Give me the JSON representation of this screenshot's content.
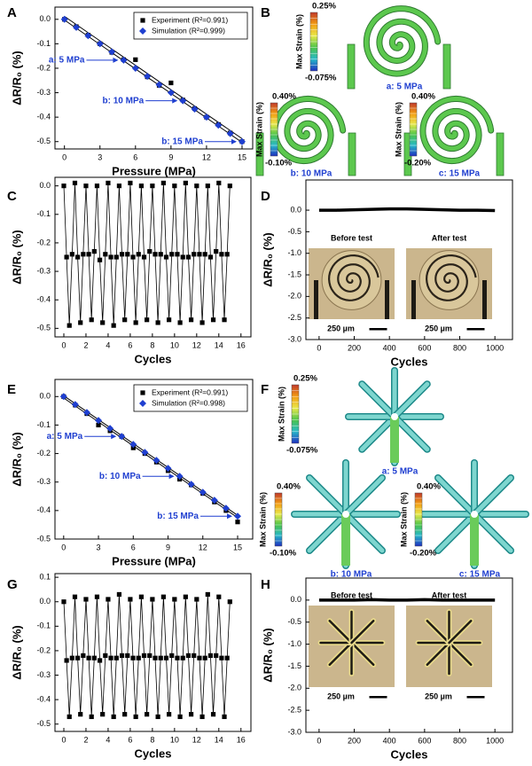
{
  "chart_data": [
    {
      "type": "scatter",
      "panel": "A",
      "xlabel": "Pressure (MPa)",
      "ylabel": "ΔR/R₀ (%)",
      "xlim": [
        -0.8,
        15.9
      ],
      "ylim": [
        -0.53,
        0.05
      ],
      "xticks": [
        0,
        3,
        6,
        9,
        12,
        15
      ],
      "yticks": [
        {
          "value": 0,
          "label": "0.0"
        },
        -0.1,
        -0.2,
        -0.3,
        -0.4,
        -0.5
      ],
      "legend": "upper right",
      "series": [
        {
          "name": "Experiment (R²=0.991)",
          "color": "#000000",
          "marker": "square",
          "x": [
            0,
            1,
            2,
            3,
            4,
            5,
            6,
            7,
            8,
            9,
            10,
            11,
            12,
            13,
            14,
            15
          ],
          "values": [
            0.0,
            -0.03,
            -0.065,
            -0.1,
            -0.135,
            -0.165,
            -0.165,
            -0.235,
            -0.27,
            -0.26,
            -0.33,
            -0.365,
            -0.4,
            -0.43,
            -0.465,
            -0.5
          ]
        },
        {
          "name": "Simulation (R²=0.999)",
          "color": "#1f3fd0",
          "marker": "diamond",
          "x": [
            0,
            1,
            2,
            3,
            4,
            5,
            6,
            7,
            8,
            9,
            10,
            11,
            12,
            13,
            14,
            15
          ],
          "values": [
            0,
            -0.033,
            -0.067,
            -0.1,
            -0.133,
            -0.167,
            -0.2,
            -0.233,
            -0.267,
            -0.3,
            -0.333,
            -0.367,
            -0.4,
            -0.433,
            -0.467,
            -0.5
          ]
        },
        {
          "color": "#000000",
          "x": [
            0,
            15
          ],
          "values": [
            0.012,
            -0.488
          ]
        },
        {
          "color": "#000000",
          "x": [
            0,
            15
          ],
          "values": [
            -0.003,
            -0.503
          ]
        }
      ],
      "annotations": [
        {
          "text": "a: 5 MPa",
          "x": 5,
          "y": -0.167
        },
        {
          "text": "b: 10 MPa",
          "x": 10,
          "y": -0.333
        },
        {
          "text": "b: 15 MPa",
          "x": 15,
          "y": -0.5
        }
      ]
    },
    {
      "type": "line",
      "panel": "C",
      "xlabel": "Cycles",
      "ylabel": "ΔR/R₀ (%)",
      "xlim": [
        -0.8,
        16.9
      ],
      "ylim": [
        -0.53,
        0.03
      ],
      "xticks": [
        0,
        2,
        4,
        6,
        8,
        10,
        12,
        14,
        16
      ],
      "yticks": [
        {
          "value": 0,
          "label": "0.0"
        },
        -0.1,
        -0.2,
        -0.3,
        -0.4,
        -0.5
      ],
      "series": [
        {
          "color": "#000000",
          "marker": "square",
          "x": [
            0,
            0.25,
            0.5,
            0.75,
            1,
            1.25,
            1.5,
            1.75,
            2,
            2.25,
            2.5,
            2.75,
            3,
            3.25,
            3.5,
            3.75,
            4,
            4.25,
            4.5,
            4.75,
            5,
            5.25,
            5.5,
            5.75,
            6,
            6.25,
            6.5,
            6.75,
            7,
            7.25,
            7.5,
            7.75,
            8,
            8.25,
            8.5,
            8.75,
            9,
            9.25,
            9.5,
            9.75,
            10,
            10.25,
            10.5,
            10.75,
            11,
            11.25,
            11.5,
            11.75,
            12,
            12.25,
            12.5,
            12.75,
            13,
            13.25,
            13.5,
            13.75,
            14,
            14.25,
            14.5,
            14.75,
            15
          ],
          "values": [
            0.0,
            -0.25,
            -0.49,
            -0.24,
            0.01,
            -0.25,
            -0.48,
            -0.24,
            0.0,
            -0.24,
            -0.47,
            -0.23,
            0.0,
            -0.26,
            -0.48,
            -0.24,
            0.01,
            -0.25,
            -0.49,
            -0.25,
            0.0,
            -0.24,
            -0.47,
            -0.24,
            0.01,
            -0.25,
            -0.48,
            -0.24,
            0.0,
            -0.25,
            -0.47,
            -0.23,
            0.0,
            -0.24,
            -0.48,
            -0.24,
            0.01,
            -0.25,
            -0.47,
            -0.24,
            0.0,
            -0.24,
            -0.48,
            -0.25,
            0.01,
            -0.25,
            -0.47,
            -0.24,
            0.0,
            -0.24,
            -0.48,
            -0.24,
            0.0,
            -0.25,
            -0.47,
            -0.23,
            0.01,
            -0.24,
            -0.47,
            -0.24,
            0.0
          ]
        }
      ]
    },
    {
      "type": "line",
      "panel": "D",
      "xlabel": "Cycles",
      "ylabel": "ΔR/R₀ (%)",
      "xlim": [
        -75,
        1100
      ],
      "ylim": [
        -3,
        0.7
      ],
      "xticks": [
        0,
        200,
        400,
        600,
        800,
        1000
      ],
      "yticks": [
        {
          "value": 0,
          "label": "0.0"
        },
        -0.5,
        {
          "value": -1,
          "label": "-1.0"
        },
        -1.5,
        {
          "value": -2,
          "label": "-2.0"
        },
        -2.5,
        {
          "value": -3,
          "label": "-3.0"
        }
      ],
      "series": [
        {
          "color": "#000000",
          "x": [
            0,
            100,
            200,
            300,
            400,
            500,
            600,
            700,
            800,
            900,
            1000
          ],
          "values": [
            0,
            0,
            0.01,
            0.02,
            0.03,
            0.03,
            0.02,
            0.01,
            0.0,
            0.0,
            -0.01
          ]
        }
      ],
      "insets": {
        "labels": [
          "Before test",
          "After test"
        ],
        "scale_bar": "250 µm"
      }
    },
    {
      "type": "scatter",
      "panel": "E",
      "xlabel": "Pressure (MPa)",
      "ylabel": "ΔR/R₀ (%)",
      "xlim": [
        -0.75,
        16.3
      ],
      "ylim": [
        -0.5,
        0.06
      ],
      "xticks": [
        0,
        3,
        6,
        9,
        12,
        15
      ],
      "yticks": [
        {
          "value": 0,
          "label": "0.0"
        },
        -0.1,
        -0.2,
        -0.3,
        -0.4,
        -0.5
      ],
      "legend": "upper right",
      "series": [
        {
          "name": "Experiment (R²=0.991)",
          "color": "#000000",
          "marker": "square",
          "x": [
            0,
            1,
            2,
            3,
            4,
            5,
            6,
            7,
            8,
            9,
            10,
            11,
            12,
            13,
            14,
            15
          ],
          "values": [
            0,
            -0.03,
            -0.06,
            -0.1,
            -0.12,
            -0.14,
            -0.18,
            -0.2,
            -0.23,
            -0.26,
            -0.29,
            -0.31,
            -0.34,
            -0.37,
            -0.4,
            -0.44
          ]
        },
        {
          "name": "Simulation (R²=0.998)",
          "color": "#1f3fd0",
          "marker": "diamond",
          "x": [
            0,
            1,
            2,
            3,
            4,
            5,
            6,
            7,
            8,
            9,
            10,
            11,
            12,
            13,
            14,
            15
          ],
          "values": [
            0,
            -0.028,
            -0.056,
            -0.084,
            -0.112,
            -0.14,
            -0.168,
            -0.196,
            -0.224,
            -0.252,
            -0.28,
            -0.308,
            -0.336,
            -0.364,
            -0.392,
            -0.42
          ]
        },
        {
          "color": "#000000",
          "x": [
            0,
            15
          ],
          "values": [
            0.003,
            -0.417
          ]
        },
        {
          "color": "#000000",
          "x": [
            0,
            15
          ],
          "values": [
            -0.005,
            -0.425
          ]
        }
      ],
      "annotations": [
        {
          "text": "a: 5 MPa",
          "x": 5,
          "y": -0.14
        },
        {
          "text": "b: 10 MPa",
          "x": 10,
          "y": -0.28
        },
        {
          "text": "b: 15 MPa",
          "x": 15,
          "y": -0.42
        }
      ]
    },
    {
      "type": "line",
      "panel": "G",
      "xlabel": "Cycles",
      "ylabel": "ΔR/R₀ (%)",
      "xlim": [
        -0.8,
        16.9
      ],
      "ylim": [
        -0.53,
        0.115
      ],
      "xticks": [
        0,
        2,
        4,
        6,
        8,
        10,
        12,
        14,
        16
      ],
      "yticks": [
        0.1,
        {
          "value": 0,
          "label": "0.0"
        },
        -0.1,
        -0.2,
        -0.3,
        -0.4,
        -0.5
      ],
      "series": [
        {
          "color": "#000000",
          "marker": "square",
          "x": [
            0,
            0.25,
            0.5,
            0.75,
            1,
            1.25,
            1.5,
            1.75,
            2,
            2.25,
            2.5,
            2.75,
            3,
            3.25,
            3.5,
            3.75,
            4,
            4.25,
            4.5,
            4.75,
            5,
            5.25,
            5.5,
            5.75,
            6,
            6.25,
            6.5,
            6.75,
            7,
            7.25,
            7.5,
            7.75,
            8,
            8.25,
            8.5,
            8.75,
            9,
            9.25,
            9.5,
            9.75,
            10,
            10.25,
            10.5,
            10.75,
            11,
            11.25,
            11.5,
            11.75,
            12,
            12.25,
            12.5,
            12.75,
            13,
            13.25,
            13.5,
            13.75,
            14,
            14.25,
            14.5,
            14.75,
            15
          ],
          "values": [
            0.0,
            -0.24,
            -0.47,
            -0.23,
            0.02,
            -0.23,
            -0.46,
            -0.22,
            0.01,
            -0.23,
            -0.47,
            -0.23,
            0.02,
            -0.24,
            -0.46,
            -0.22,
            0.01,
            -0.23,
            -0.47,
            -0.23,
            0.03,
            -0.22,
            -0.46,
            -0.22,
            0.01,
            -0.23,
            -0.47,
            -0.23,
            0.02,
            -0.22,
            -0.46,
            -0.22,
            0.01,
            -0.23,
            -0.47,
            -0.23,
            0.02,
            -0.23,
            -0.46,
            -0.22,
            0.01,
            -0.23,
            -0.47,
            -0.23,
            0.02,
            -0.22,
            -0.46,
            -0.22,
            0.01,
            -0.23,
            -0.47,
            -0.23,
            0.03,
            -0.22,
            -0.46,
            -0.22,
            0.02,
            -0.23,
            -0.47,
            -0.23,
            0.0
          ]
        }
      ]
    },
    {
      "type": "line",
      "panel": "H",
      "xlabel": "Cycles",
      "ylabel": "ΔR/R₀ (%)",
      "xlim": [
        -75,
        1100
      ],
      "ylim": [
        -3,
        0.5
      ],
      "xticks": [
        0,
        200,
        400,
        600,
        800,
        1000
      ],
      "yticks": [
        {
          "value": 0,
          "label": "0.0"
        },
        -0.5,
        {
          "value": -1,
          "label": "-1.0"
        },
        -1.5,
        {
          "value": -2,
          "label": "-2.0"
        },
        -2.5,
        {
          "value": -3,
          "label": "-3.0"
        }
      ],
      "series": [
        {
          "color": "#000000",
          "x": [
            0,
            100,
            200,
            300,
            400,
            500,
            600,
            700,
            800,
            900,
            1000
          ],
          "values": [
            0,
            0,
            0,
            0.01,
            0,
            0,
            0.01,
            0,
            0,
            0,
            0
          ]
        }
      ],
      "insets": {
        "labels": [
          "Before test",
          "After test"
        ],
        "scale_bar": "250 µm"
      }
    }
  ],
  "figures": [
    {
      "panel": "B",
      "shape": "spiral",
      "axis_label": "Max Strain (%)",
      "items": [
        {
          "max": "0.25%",
          "min": "-0.075%",
          "caption": "a: 5 MPa"
        },
        {
          "max": "0.40%",
          "min": "-0.10%",
          "caption": "b: 10 MPa"
        },
        {
          "max": "0.40%",
          "min": "-0.20%",
          "caption": "c: 15 MPa"
        }
      ]
    },
    {
      "panel": "F",
      "shape": "star",
      "axis_label": "Max Strain (%)",
      "items": [
        {
          "max": "0.25%",
          "min": "-0.075%",
          "caption": "a: 5 MPa"
        },
        {
          "max": "0.40%",
          "min": "-0.10%",
          "caption": "b: 10 MPa"
        },
        {
          "max": "0.40%",
          "min": "-0.20%",
          "caption": "c: 15 MPa"
        }
      ]
    }
  ]
}
